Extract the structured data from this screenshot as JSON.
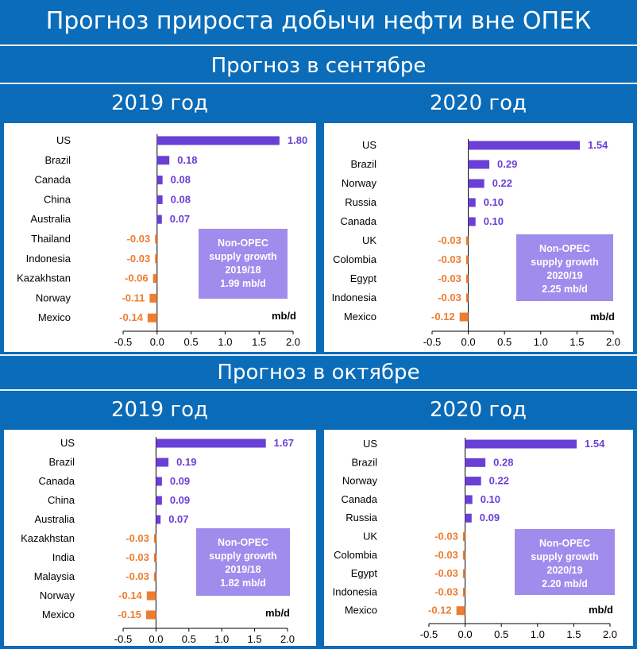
{
  "title": "Прогноз прироста добычи нефти вне ОПЕК",
  "sections": [
    {
      "title": "Прогноз в сентябре"
    },
    {
      "title": "Прогноз в октябре"
    }
  ],
  "colors": {
    "positive": "#6a3fd6",
    "negative": "#ed7d31",
    "note_bg": "#9f8cec",
    "banner": "#0b6db9"
  },
  "chart_data": [
    {
      "type": "bar",
      "orientation": "horizontal",
      "title": "2019 год",
      "categories": [
        "US",
        "Brazil",
        "Canada",
        "China",
        "Australia",
        "Thailand",
        "Indonesia",
        "Kazakhstan",
        "Norway",
        "Mexico"
      ],
      "values": [
        1.8,
        0.18,
        0.08,
        0.08,
        0.07,
        -0.03,
        -0.03,
        -0.06,
        -0.11,
        -0.14
      ],
      "value_labels": [
        "1.80",
        "0.18",
        "0.08",
        "0.08",
        "0.07",
        "-0.03",
        "-0.03",
        "-0.06",
        "-0.11",
        "-0.14"
      ],
      "xlim": [
        -0.5,
        2.0
      ],
      "xticks": [
        "-0.5",
        "0.0",
        "0.5",
        "1.0",
        "1.5",
        "2.0"
      ],
      "unit": "mb/d",
      "note": [
        "Non-OPEC",
        "supply growth",
        "2019/18",
        "1.99 mb/d"
      ]
    },
    {
      "type": "bar",
      "orientation": "horizontal",
      "title": "2020 год",
      "categories": [
        "US",
        "Brazil",
        "Norway",
        "Russia",
        "Canada",
        "UK",
        "Colombia",
        "Egypt",
        "Indonesia",
        "Mexico"
      ],
      "values": [
        1.54,
        0.29,
        0.22,
        0.1,
        0.1,
        -0.03,
        -0.03,
        -0.03,
        -0.03,
        -0.12
      ],
      "value_labels": [
        "1.54",
        "0.29",
        "0.22",
        "0.10",
        "0.10",
        "-0.03",
        "-0.03",
        "-0.03",
        "-0.03",
        "-0.12"
      ],
      "xlim": [
        -0.5,
        2.0
      ],
      "xticks": [
        "-0.5",
        "0.0",
        "0.5",
        "1.0",
        "1.5",
        "2.0"
      ],
      "unit": "mb/d",
      "note": [
        "Non-OPEC",
        "supply growth",
        "2020/19",
        "2.25 mb/d"
      ]
    },
    {
      "type": "bar",
      "orientation": "horizontal",
      "title": "2019 год",
      "categories": [
        "US",
        "Brazil",
        "Canada",
        "China",
        "Australia",
        "Kazakhstan",
        "India",
        "Malaysia",
        "Norway",
        "Mexico"
      ],
      "values": [
        1.67,
        0.19,
        0.09,
        0.09,
        0.07,
        -0.03,
        -0.03,
        -0.03,
        -0.14,
        -0.15
      ],
      "value_labels": [
        "1.67",
        "0.19",
        "0.09",
        "0.09",
        "0.07",
        "-0.03",
        "-0.03",
        "-0.03",
        "-0.14",
        "-0.15"
      ],
      "xlim": [
        -0.5,
        2.0
      ],
      "xticks": [
        "-0.5",
        "0.0",
        "0.5",
        "1.0",
        "1.5",
        "2.0"
      ],
      "unit": "mb/d",
      "note": [
        "Non-OPEC",
        "supply growth",
        "2019/18",
        "1.82 mb/d"
      ]
    },
    {
      "type": "bar",
      "orientation": "horizontal",
      "title": "2020 год",
      "categories": [
        "US",
        "Brazil",
        "Norway",
        "Canada",
        "Russia",
        "UK",
        "Colombia",
        "Egypt",
        "Indonesia",
        "Mexico"
      ],
      "values": [
        1.54,
        0.28,
        0.22,
        0.1,
        0.09,
        -0.03,
        -0.03,
        -0.03,
        -0.03,
        -0.12
      ],
      "value_labels": [
        "1.54",
        "0.28",
        "0.22",
        "0.10",
        "0.09",
        "-0.03",
        "-0.03",
        "-0.03",
        "-0.03",
        "-0.12"
      ],
      "xlim": [
        -0.5,
        2.0
      ],
      "xticks": [
        "-0.5",
        "0.0",
        "0.5",
        "1.0",
        "1.5",
        "2.0"
      ],
      "unit": "mb/d",
      "note": [
        "Non-OPEC",
        "supply growth",
        "2020/19",
        "2.20 mb/d"
      ]
    }
  ]
}
